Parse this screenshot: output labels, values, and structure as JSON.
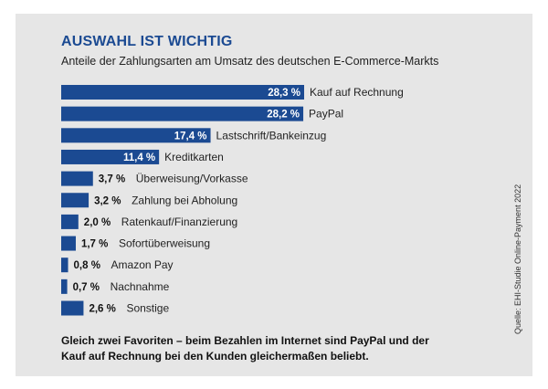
{
  "title": "AUSWAHL IST WICHTIG",
  "subtitle": "Anteile der Zahlungsarten am Umsatz des deutschen E-Commerce-Markts",
  "footer": "Gleich zwei Favoriten – beim Bezahlen im Internet sind PayPal und der Kauf auf Rechnung bei den Kunden gleichermaßen beliebt.",
  "source": "Quelle: EHI-Studie Online-Payment 2022",
  "colors": {
    "bar": "#1b4a92",
    "panel": "#e6e6e6",
    "title": "#1b4a92"
  },
  "chart_data": {
    "type": "bar",
    "orientation": "horizontal",
    "categories": [
      "Kauf auf Rechnung",
      "PayPal",
      "Lastschrift/Bankeinzug",
      "Kreditkarten",
      "Überweisung/Vorkasse",
      "Zahlung bei Abholung",
      "Ratenkauf/Finanzierung",
      "Sofortüberweisung",
      "Amazon Pay",
      "Nachnahme",
      "Sonstige"
    ],
    "values": [
      28.3,
      28.2,
      17.4,
      11.4,
      3.7,
      3.2,
      2.0,
      1.7,
      0.8,
      0.7,
      2.6
    ],
    "value_labels": [
      "28,3 %",
      "28,2 %",
      "17,4 %",
      "11,4 %",
      "3,7 %",
      "3,2 %",
      "2,0 %",
      "1,7 %",
      "0,8 %",
      "0,7 %",
      "2,6 %"
    ],
    "unit": "%",
    "grid": false,
    "legend": "none"
  }
}
